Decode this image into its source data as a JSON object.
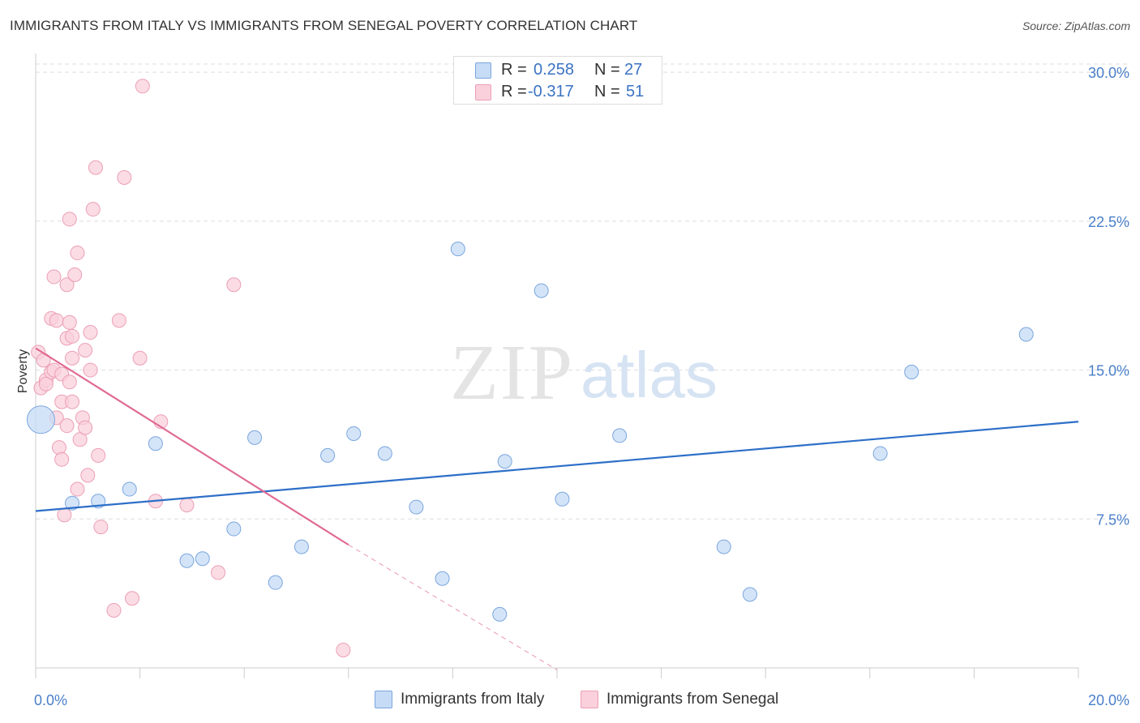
{
  "title": "IMMIGRANTS FROM ITALY VS IMMIGRANTS FROM SENEGAL POVERTY CORRELATION CHART",
  "source": "Source: ZipAtlas.com",
  "watermark": {
    "zip": "ZIP",
    "atlas": "atlas"
  },
  "legend_stats": [
    {
      "r_label": "R =",
      "r_value": "0.258",
      "n_label": "N =",
      "n_value": "27",
      "color": "#a8c8f0"
    },
    {
      "r_label": "R =",
      "r_value": "-0.317",
      "n_label": "N =",
      "n_value": "51",
      "color": "#f5b8c8"
    }
  ],
  "colors": {
    "italy_fill": "#c6dbf5",
    "italy_stroke": "#7aa6de",
    "italy_line": "#2d6fc8",
    "senegal_fill": "#f9d0dc",
    "senegal_stroke": "#ec9fb5",
    "senegal_line": "#e06a93",
    "tick_text": "#4a7fc9",
    "grid": "#dddddd"
  },
  "chart_data": {
    "type": "scatter",
    "title": "IMMIGRANTS FROM ITALY VS IMMIGRANTS FROM SENEGAL POVERTY CORRELATION CHART",
    "xlabel": "",
    "ylabel": "Poverty",
    "xlim": [
      0,
      20
    ],
    "ylim": [
      0,
      30.7
    ],
    "x_tick_labels": [
      "0.0%",
      "20.0%"
    ],
    "y_ticks": [
      7.5,
      15.0,
      22.5,
      30.0
    ],
    "y_tick_labels": [
      "7.5%",
      "15.0%",
      "22.5%",
      "30.0%"
    ],
    "grid": true,
    "legend_position": "bottom-center",
    "series": [
      {
        "name": "Immigrants from Italy",
        "color": "#a8c8f0",
        "trend": {
          "x": [
            0,
            20
          ],
          "y": [
            7.9,
            12.4
          ]
        },
        "points": [
          [
            0.1,
            12.5
          ],
          [
            0.7,
            8.3
          ],
          [
            1.2,
            8.4
          ],
          [
            1.8,
            9.0
          ],
          [
            2.3,
            11.3
          ],
          [
            2.9,
            5.4
          ],
          [
            3.2,
            5.5
          ],
          [
            3.8,
            7.0
          ],
          [
            4.2,
            11.6
          ],
          [
            4.6,
            4.3
          ],
          [
            5.1,
            6.1
          ],
          [
            5.6,
            10.7
          ],
          [
            6.1,
            11.8
          ],
          [
            6.7,
            10.8
          ],
          [
            7.3,
            8.1
          ],
          [
            7.8,
            4.5
          ],
          [
            8.1,
            21.1
          ],
          [
            8.9,
            2.7
          ],
          [
            9.0,
            10.4
          ],
          [
            9.7,
            19.0
          ],
          [
            10.1,
            8.5
          ],
          [
            11.2,
            11.7
          ],
          [
            13.2,
            6.1
          ],
          [
            13.7,
            3.7
          ],
          [
            16.2,
            10.8
          ],
          [
            16.8,
            14.9
          ],
          [
            19.0,
            16.8
          ]
        ],
        "point_sizes": [
          34,
          10,
          10,
          10,
          10,
          10,
          10,
          10,
          10,
          10,
          10,
          10,
          10,
          10,
          10,
          10,
          10,
          10,
          10,
          10,
          10,
          10,
          10,
          10,
          10,
          10,
          10
        ]
      },
      {
        "name": "Immigrants from Senegal",
        "color": "#f5b8c8",
        "trend": {
          "x": [
            0,
            6.0
          ],
          "y": [
            16.1,
            6.2
          ],
          "dashed_to": {
            "x": 10.0,
            "y": -0.1
          }
        },
        "points": [
          [
            0.05,
            15.9
          ],
          [
            0.1,
            14.1
          ],
          [
            0.15,
            15.5
          ],
          [
            0.2,
            14.5
          ],
          [
            0.2,
            14.3
          ],
          [
            0.3,
            14.9
          ],
          [
            0.35,
            15.0
          ],
          [
            0.3,
            17.6
          ],
          [
            0.35,
            19.7
          ],
          [
            0.4,
            17.5
          ],
          [
            0.4,
            12.6
          ],
          [
            0.45,
            11.1
          ],
          [
            0.5,
            10.5
          ],
          [
            0.5,
            13.4
          ],
          [
            0.55,
            7.7
          ],
          [
            0.5,
            14.8
          ],
          [
            0.6,
            12.2
          ],
          [
            0.65,
            14.4
          ],
          [
            0.6,
            19.3
          ],
          [
            0.6,
            16.6
          ],
          [
            0.65,
            17.4
          ],
          [
            0.65,
            22.6
          ],
          [
            0.7,
            13.4
          ],
          [
            0.7,
            15.6
          ],
          [
            0.7,
            16.7
          ],
          [
            0.75,
            19.8
          ],
          [
            0.8,
            9.0
          ],
          [
            0.8,
            20.9
          ],
          [
            0.85,
            11.5
          ],
          [
            0.9,
            12.6
          ],
          [
            0.95,
            16.0
          ],
          [
            0.95,
            12.1
          ],
          [
            1.0,
            9.7
          ],
          [
            1.05,
            15.0
          ],
          [
            1.05,
            16.9
          ],
          [
            1.1,
            23.1
          ],
          [
            1.15,
            25.2
          ],
          [
            1.2,
            10.7
          ],
          [
            1.25,
            7.1
          ],
          [
            1.6,
            17.5
          ],
          [
            1.5,
            2.9
          ],
          [
            1.7,
            24.7
          ],
          [
            1.85,
            3.5
          ],
          [
            2.0,
            15.6
          ],
          [
            2.05,
            29.3
          ],
          [
            2.3,
            8.4
          ],
          [
            2.4,
            12.4
          ],
          [
            2.9,
            8.2
          ],
          [
            3.5,
            4.8
          ],
          [
            3.8,
            19.3
          ],
          [
            5.9,
            0.9
          ]
        ]
      }
    ]
  },
  "legend_bottom": [
    {
      "label": "Immigrants from Italy",
      "color": "#c6dbf5",
      "stroke": "#7aa6de"
    },
    {
      "label": "Immigrants from Senegal",
      "color": "#f9d0dc",
      "stroke": "#ec9fb5"
    }
  ]
}
